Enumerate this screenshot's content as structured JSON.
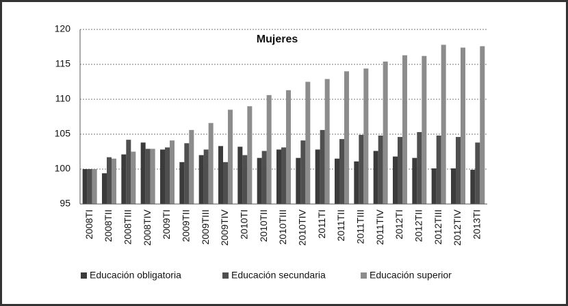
{
  "chart_data": {
    "type": "bar",
    "title": "Mujeres",
    "categories": [
      "2008TI",
      "2008TII",
      "2008TIII",
      "2008TIV",
      "2009TI",
      "2009TII",
      "2009TIII",
      "2009TIV",
      "2010TI",
      "2010TII",
      "2010TIII",
      "2010TIV",
      "2011TI",
      "2011TII",
      "2011TIII",
      "2011TIV",
      "2012TI",
      "2012TII",
      "2012TIII",
      "2012TIV",
      "2013TI"
    ],
    "series": [
      {
        "name": "Educación obligatoria",
        "color": "#3b3b3b",
        "values": [
          100,
          99.4,
          102.1,
          103.8,
          102.8,
          101.0,
          102.0,
          103.3,
          103.2,
          101.6,
          102.8,
          101.6,
          102.8,
          101.5,
          101.1,
          102.6,
          101.8,
          101.6,
          100.1,
          100.1,
          99.9
        ]
      },
      {
        "name": "Educación secundaria",
        "color": "#4f4f4f",
        "values": [
          100,
          101.7,
          104.2,
          102.9,
          103.1,
          103.7,
          102.8,
          101.0,
          102.0,
          102.6,
          103.1,
          104.1,
          105.6,
          104.3,
          104.9,
          104.8,
          104.6,
          105.3,
          104.8,
          104.6,
          103.8
        ]
      },
      {
        "name": "Educación superior",
        "color": "#8c8c8c",
        "values": [
          100,
          101.5,
          102.5,
          102.9,
          104.1,
          105.6,
          106.6,
          108.5,
          109.0,
          110.6,
          111.3,
          112.5,
          112.9,
          114.0,
          114.4,
          115.4,
          116.3,
          116.2,
          117.8,
          117.4,
          117.6
        ]
      }
    ],
    "ylim": [
      95,
      120
    ],
    "yticks": [
      95,
      100,
      105,
      110,
      115,
      120
    ],
    "grid": true
  }
}
